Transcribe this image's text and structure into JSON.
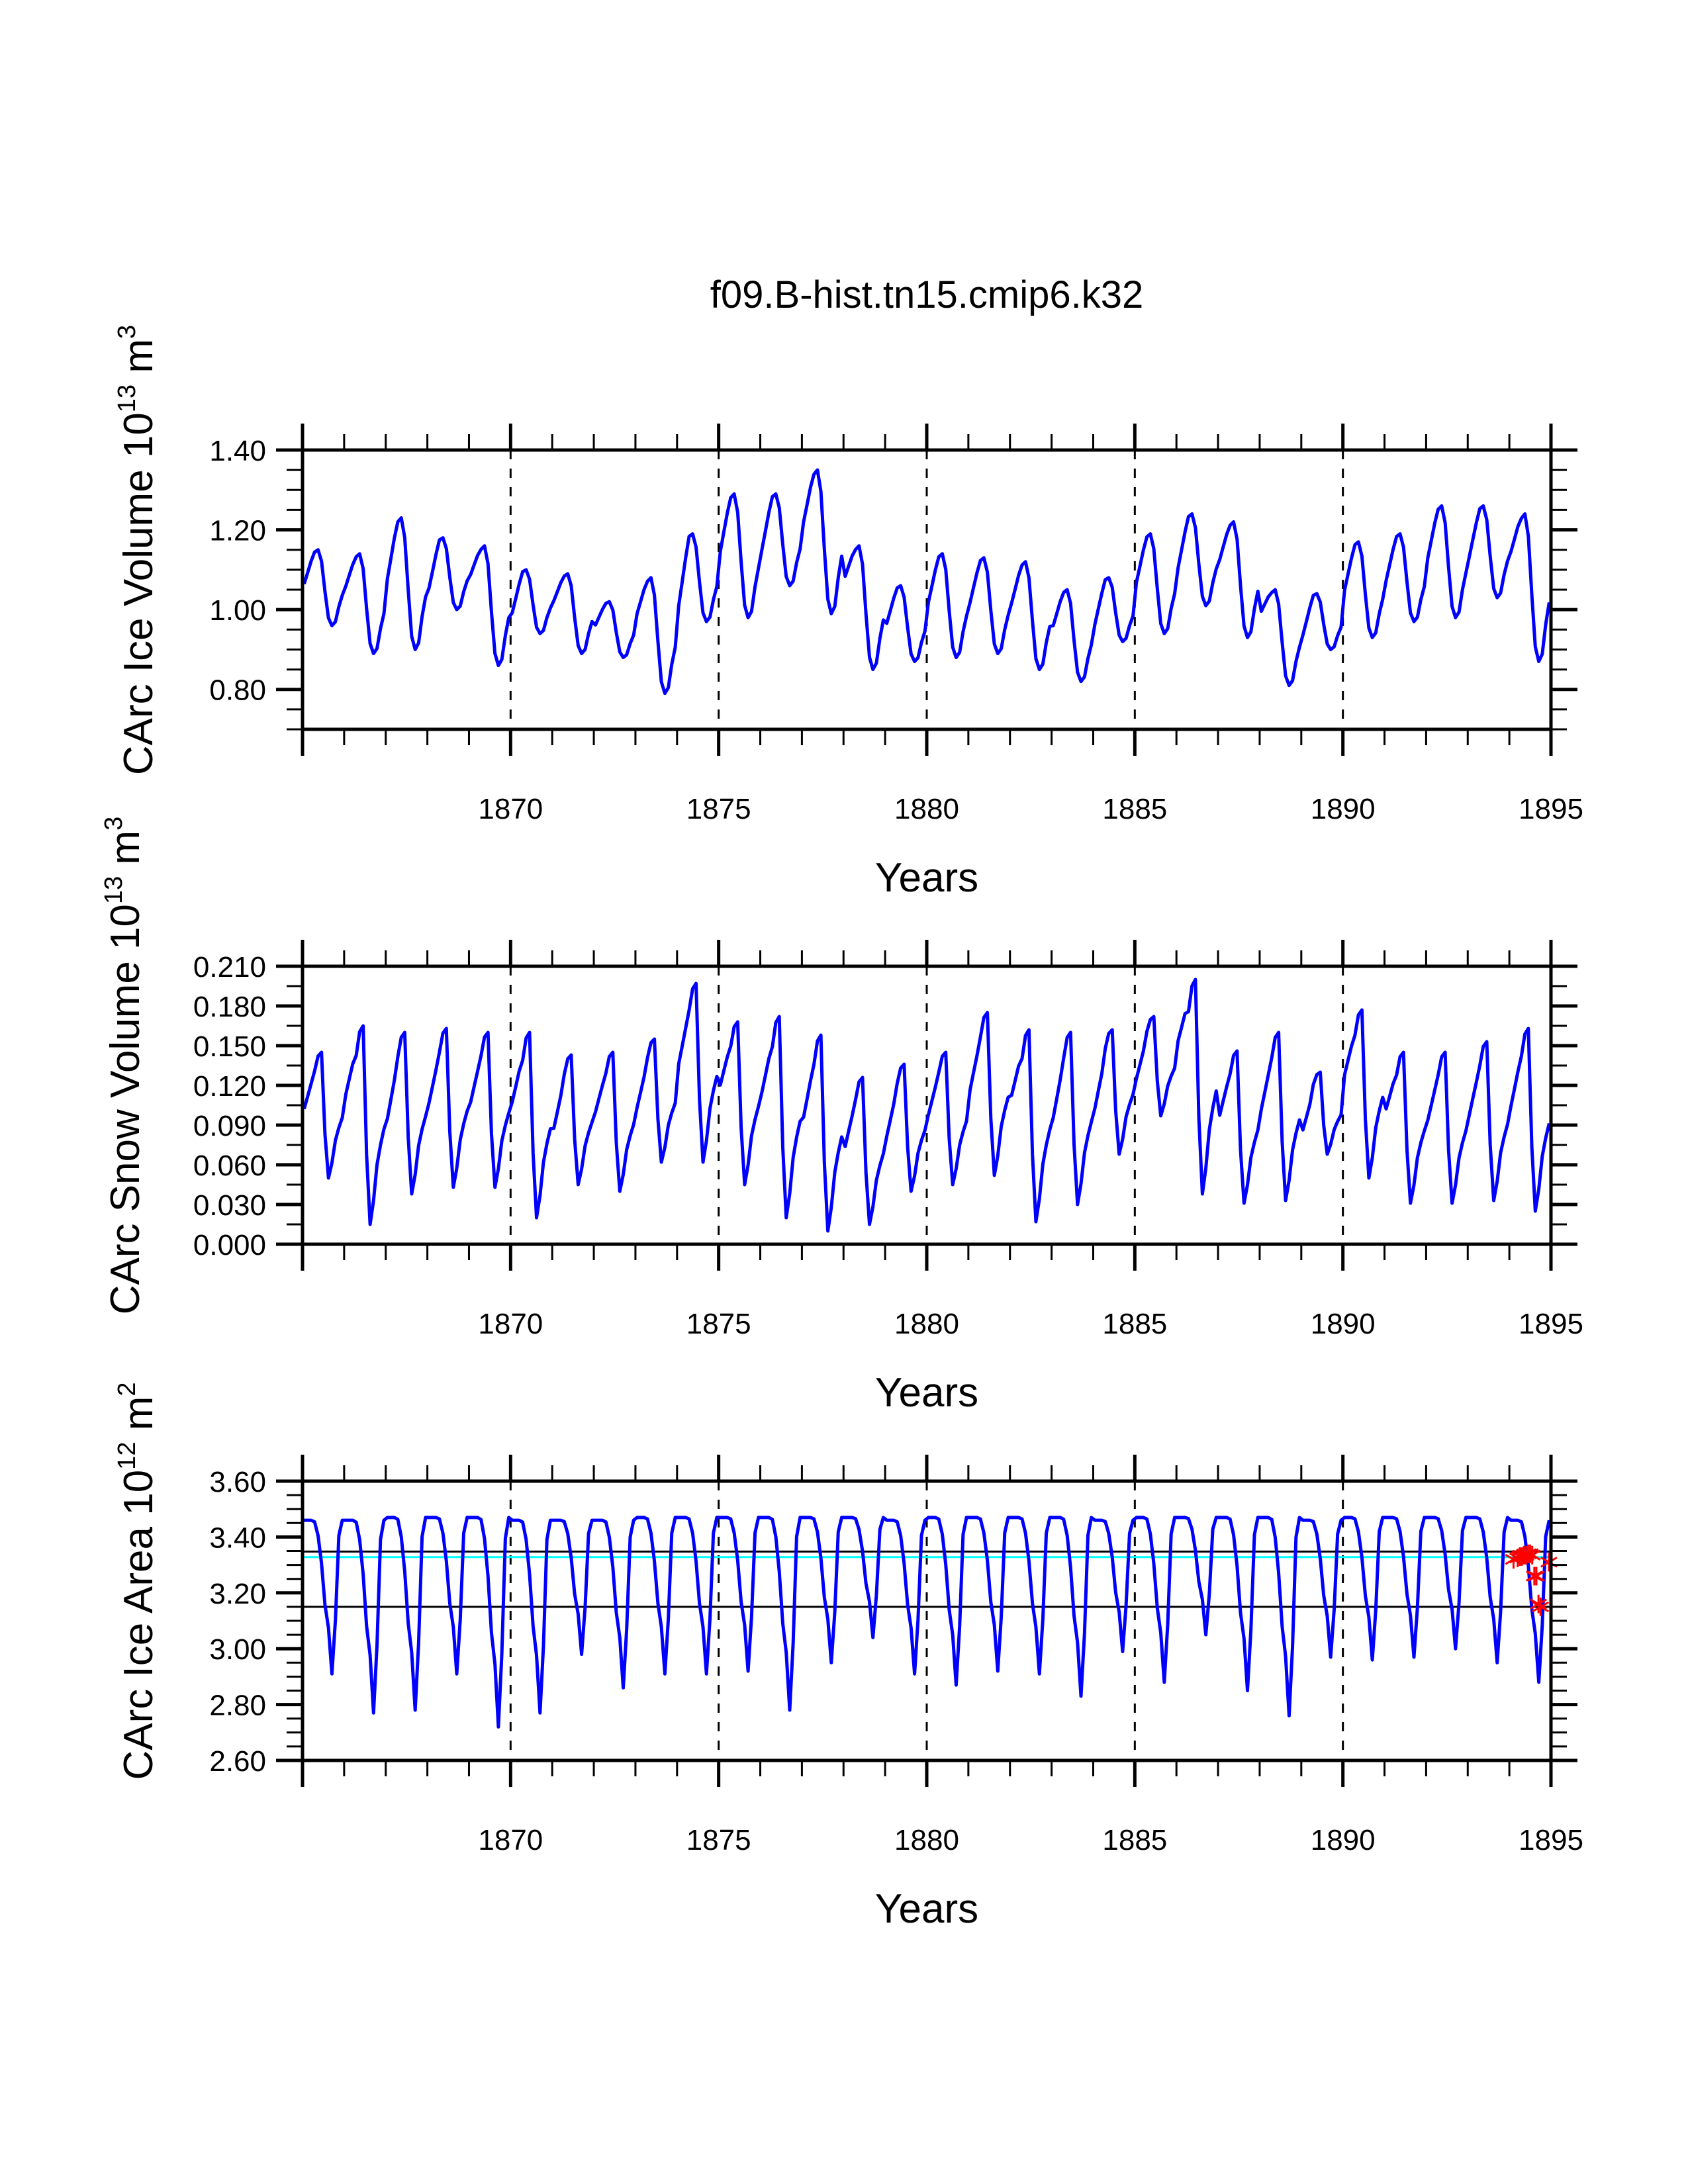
{
  "chart_data": [
    {
      "type": "line",
      "id": "ice-volume",
      "title": "f09.B-hist.tn15.cmip6.k32",
      "ylabel": "CArc Ice Volume 10^13 m^3",
      "ylabel_parts": {
        "main": "CArc Ice Volume 10",
        "exp1": "13",
        "unit": " m",
        "exp2": "3"
      },
      "xlabel": "Years",
      "xlim": [
        1865,
        1895
      ],
      "ylim": [
        0.7,
        1.4
      ],
      "x_ticks": [
        1870,
        1875,
        1880,
        1885,
        1890,
        1895
      ],
      "x_tick_labels": [
        "1870",
        "1875",
        "1880",
        "1885",
        "1890",
        "1895"
      ],
      "y_ticks": [
        0.8,
        1.0,
        1.2,
        1.4
      ],
      "y_tick_labels": [
        "0.80",
        "1.00",
        "1.20",
        "1.40"
      ],
      "vlines_dashed": [
        1870,
        1875,
        1880,
        1885,
        1890
      ],
      "series": [
        {
          "name": "CArc Ice Volume (monthly)",
          "color": "#0000ff",
          "encoding": "annual cycle; monthly values approximated from yearly max (spring) and min (autumn)",
          "years": [
            1865,
            1866,
            1867,
            1868,
            1869,
            1870,
            1871,
            1872,
            1873,
            1874,
            1875,
            1876,
            1877,
            1878,
            1879,
            1880,
            1881,
            1882,
            1883,
            1884,
            1885,
            1886,
            1887,
            1888,
            1889,
            1890,
            1891,
            1892,
            1893,
            1894
          ],
          "annual_max": [
            1.15,
            1.14,
            1.23,
            1.18,
            1.16,
            1.1,
            1.09,
            1.02,
            1.08,
            1.19,
            1.29,
            1.29,
            1.35,
            1.16,
            1.06,
            1.14,
            1.13,
            1.12,
            1.05,
            1.08,
            1.19,
            1.24,
            1.22,
            1.05,
            1.04,
            1.17,
            1.19,
            1.26,
            1.26,
            1.24
          ],
          "annual_min": [
            0.96,
            0.89,
            0.9,
            1.0,
            0.86,
            0.94,
            0.89,
            0.88,
            0.79,
            0.97,
            0.98,
            1.06,
            0.99,
            0.85,
            0.87,
            0.88,
            0.89,
            0.85,
            0.82,
            0.92,
            0.94,
            1.01,
            0.93,
            0.81,
            0.9,
            0.93,
            0.97,
            0.98,
            1.03,
            0.87
          ]
        }
      ]
    },
    {
      "type": "line",
      "id": "snow-volume",
      "ylabel": "CArc Snow Volume 10^13 m^3",
      "ylabel_parts": {
        "main": "CArc Snow Volume 10",
        "exp1": "13",
        "unit": " m",
        "exp2": "3"
      },
      "xlabel": "Years",
      "xlim": [
        1865,
        1895
      ],
      "ylim": [
        0.0,
        0.21
      ],
      "x_ticks": [
        1870,
        1875,
        1880,
        1885,
        1890,
        1895
      ],
      "x_tick_labels": [
        "1870",
        "1875",
        "1880",
        "1885",
        "1890",
        "1895"
      ],
      "y_ticks": [
        0.0,
        0.03,
        0.06,
        0.09,
        0.12,
        0.15,
        0.18,
        0.21
      ],
      "y_tick_labels": [
        "0.000",
        "0.030",
        "0.060",
        "0.090",
        "0.120",
        "0.150",
        "0.180",
        "0.210"
      ],
      "vlines_dashed": [
        1870,
        1875,
        1880,
        1885,
        1890
      ],
      "series": [
        {
          "name": "CArc Snow Volume (monthly)",
          "color": "#0000ff",
          "encoding": "annual cycle; monthly values approximated from yearly max (spring) and min (late summer)",
          "years": [
            1865,
            1866,
            1867,
            1868,
            1869,
            1870,
            1871,
            1872,
            1873,
            1874,
            1875,
            1876,
            1877,
            1878,
            1879,
            1880,
            1881,
            1882,
            1883,
            1884,
            1885,
            1886,
            1887,
            1888,
            1889,
            1890,
            1891,
            1892,
            1893,
            1894
          ],
          "annual_max": [
            0.145,
            0.165,
            0.16,
            0.163,
            0.16,
            0.16,
            0.143,
            0.145,
            0.155,
            0.197,
            0.168,
            0.172,
            0.158,
            0.126,
            0.136,
            0.145,
            0.175,
            0.162,
            0.16,
            0.162,
            0.172,
            0.2,
            0.146,
            0.16,
            0.13,
            0.177,
            0.145,
            0.145,
            0.153,
            0.163
          ],
          "annual_min": [
            0.05,
            0.015,
            0.038,
            0.043,
            0.043,
            0.02,
            0.045,
            0.04,
            0.062,
            0.062,
            0.045,
            0.02,
            0.01,
            0.015,
            0.04,
            0.045,
            0.052,
            0.017,
            0.03,
            0.068,
            0.097,
            0.038,
            0.031,
            0.033,
            0.068,
            0.05,
            0.031,
            0.031,
            0.033,
            0.025
          ]
        }
      ]
    },
    {
      "type": "line",
      "id": "ice-area",
      "ylabel": "CArc Ice Area 10^12 m^2",
      "ylabel_parts": {
        "main": "CArc Ice Area 10",
        "exp1": "12",
        "unit": " m",
        "exp2": "2"
      },
      "xlabel": "Years",
      "xlim": [
        1865,
        1895
      ],
      "ylim": [
        2.6,
        3.6
      ],
      "x_ticks": [
        1870,
        1875,
        1880,
        1885,
        1890,
        1895
      ],
      "x_tick_labels": [
        "1870",
        "1875",
        "1880",
        "1885",
        "1890",
        "1895"
      ],
      "y_ticks": [
        2.6,
        2.8,
        3.0,
        3.2,
        3.4,
        3.6
      ],
      "y_tick_labels": [
        "2.60",
        "2.80",
        "3.00",
        "3.20",
        "3.40",
        "3.60"
      ],
      "vlines_dashed": [
        1870,
        1875,
        1880,
        1885,
        1890
      ],
      "hlines": [
        {
          "name": "upper-reference",
          "value": 3.348,
          "color": "#000000"
        },
        {
          "name": "mean-reference",
          "value": 3.328,
          "color": "#00ffff"
        },
        {
          "name": "lower-reference",
          "value": 3.15,
          "color": "#000000"
        }
      ],
      "series": [
        {
          "name": "CArc Ice Area (monthly)",
          "color": "#0000ff",
          "encoding": "annual cycle; winter plateau at annual_max, September minimum at annual_min",
          "years": [
            1865,
            1866,
            1867,
            1868,
            1869,
            1870,
            1871,
            1872,
            1873,
            1874,
            1875,
            1876,
            1877,
            1878,
            1879,
            1880,
            1881,
            1882,
            1883,
            1884,
            1885,
            1886,
            1887,
            1888,
            1889,
            1890,
            1891,
            1892,
            1893,
            1894
          ],
          "annual_max": [
            3.46,
            3.46,
            3.47,
            3.47,
            3.47,
            3.46,
            3.46,
            3.46,
            3.47,
            3.47,
            3.47,
            3.47,
            3.47,
            3.47,
            3.46,
            3.47,
            3.47,
            3.47,
            3.47,
            3.46,
            3.47,
            3.47,
            3.47,
            3.47,
            3.46,
            3.47,
            3.47,
            3.47,
            3.47,
            3.46
          ],
          "annual_min": [
            2.91,
            2.77,
            2.78,
            2.91,
            2.72,
            2.77,
            2.98,
            2.86,
            2.91,
            2.91,
            2.92,
            2.78,
            2.95,
            3.04,
            2.91,
            2.87,
            2.92,
            2.91,
            2.83,
            2.99,
            2.88,
            3.05,
            2.85,
            2.76,
            2.97,
            2.96,
            2.97,
            3.0,
            2.95,
            2.88
          ]
        },
        {
          "name": "markers",
          "type": "scatter",
          "marker": "asterisk",
          "color": "#ff0000",
          "x": [
            1894.1,
            1894.2,
            1894.25,
            1894.3,
            1894.35,
            1894.4,
            1894.45,
            1894.5,
            1894.55,
            1894.6,
            1894.65,
            1894.7,
            1894.75,
            1894.95
          ],
          "y": [
            3.32,
            3.325,
            3.33,
            3.33,
            3.335,
            3.335,
            3.34,
            3.34,
            3.335,
            3.26,
            3.26,
            3.16,
            3.15,
            3.31
          ]
        }
      ]
    }
  ]
}
